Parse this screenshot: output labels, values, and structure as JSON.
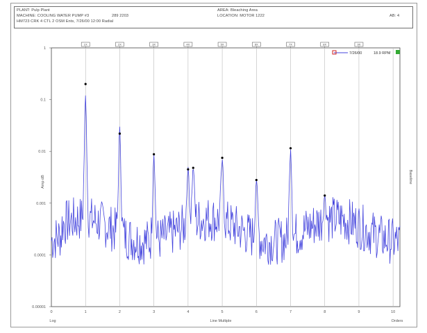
{
  "header": {
    "plant": "PLANT: Pulp Plant",
    "machine": "MACHINE: COOLING WATER PUMP #3",
    "machine_id": "289 2203",
    "point": "HM723 CRK 4 CTL 2 OSM Ents, 7/26/00 12:00 Radial",
    "area": "AREA: Bleaching Area",
    "location": "LOCATION: MOTOR 1222",
    "ab_label": "AB: 4"
  },
  "chart_data": {
    "type": "line",
    "y_scale": "log",
    "ylim": [
      1e-05,
      1
    ],
    "xlim": [
      0,
      10.2
    ],
    "y_ticks": [
      {
        "value": 1,
        "label": "1"
      },
      {
        "value": 0.1,
        "label": "0.1"
      },
      {
        "value": 0.01,
        "label": "0.01"
      },
      {
        "value": 0.001,
        "label": "0.001"
      },
      {
        "value": 0.0001,
        "label": "0.0001"
      },
      {
        "value": 1e-05,
        "label": "0.00001"
      }
    ],
    "x_ticks": [
      {
        "value": 0,
        "label": "0"
      },
      {
        "value": 1,
        "label": "1"
      },
      {
        "value": 2,
        "label": "2"
      },
      {
        "value": 3,
        "label": "3"
      },
      {
        "value": 4,
        "label": "4"
      },
      {
        "value": 5,
        "label": "5"
      },
      {
        "value": 6,
        "label": "6"
      },
      {
        "value": 7,
        "label": "7"
      },
      {
        "value": 8,
        "label": "8"
      },
      {
        "value": 9,
        "label": "9"
      },
      {
        "value": 10,
        "label": "10"
      }
    ],
    "harmonic_labels": [
      "1X",
      "2X",
      "3X",
      "4X",
      "5X",
      "6X",
      "7X",
      "8X",
      "9X"
    ],
    "xlabel": "Line Multiple",
    "ylabel": "Amp dB",
    "right_label": "Baseline",
    "corner_left": "Log",
    "corner_right": "Orders",
    "legend": {
      "series": "7/26/00",
      "value": "18.9 RPM"
    },
    "series": [
      {
        "name": "7/26/00",
        "color": "#4444dd",
        "peaks": [
          {
            "x": 1.0,
            "y": 0.12,
            "marker": 0.2
          },
          {
            "x": 2.0,
            "y": 0.03,
            "marker": 0.022
          },
          {
            "x": 3.0,
            "y": 0.0085,
            "marker": 0.0088
          },
          {
            "x": 4.0,
            "y": 0.005,
            "marker": 0.0045
          },
          {
            "x": 4.15,
            "y": 0.0048,
            "marker": 0.0048
          },
          {
            "x": 5.0,
            "y": 0.007,
            "marker": 0.0075
          },
          {
            "x": 6.0,
            "y": 0.0028,
            "marker": 0.0028
          },
          {
            "x": 7.0,
            "y": 0.011,
            "marker": 0.0115
          },
          {
            "x": 8.0,
            "y": 0.0014,
            "marker": 0.0014
          }
        ],
        "noise_floor": 0.0003
      }
    ]
  },
  "colors": {
    "trace": "#4444dd",
    "grid": "#b8b8b8",
    "marker": "#000000",
    "legend_box": "#d02020",
    "legend_check": "#33aa33"
  }
}
